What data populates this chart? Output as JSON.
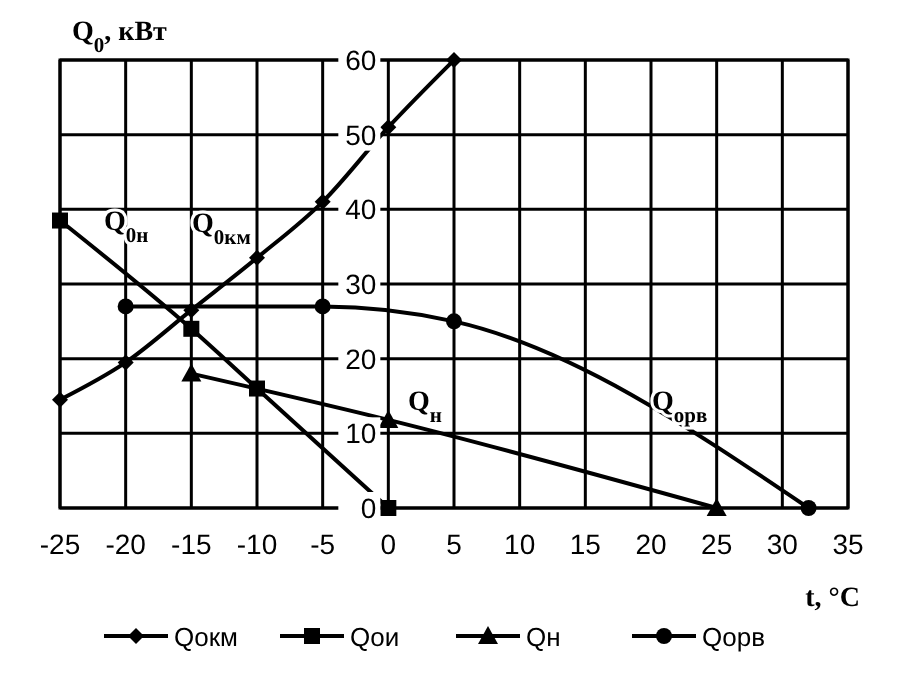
{
  "chart_data": {
    "type": "line",
    "ylabel": "Q$_{0}$, кВт",
    "xlabel": "t, °C",
    "xlim": [
      -25,
      35
    ],
    "xticks": [
      -25,
      -20,
      -15,
      -10,
      -5,
      0,
      5,
      10,
      15,
      20,
      25,
      30,
      35
    ],
    "ylim": [
      0,
      60
    ],
    "yticks": [
      0,
      10,
      20,
      30,
      40,
      50,
      60
    ],
    "grid": true,
    "legend": "bottom",
    "series": [
      {
        "name": "Qокм",
        "color": "#000000",
        "marker": "diamond",
        "x": [
          -25,
          -20,
          -15,
          -10,
          -5,
          0,
          5
        ],
        "values": [
          14.5,
          19.5,
          26.5,
          33.5,
          41,
          51,
          60
        ]
      },
      {
        "name": "Qои",
        "color": "#000000",
        "marker": "square",
        "x": [
          -25,
          -15,
          -10,
          0
        ],
        "values": [
          38.5,
          24,
          16,
          0
        ]
      },
      {
        "name": "Qн",
        "color": "#000000",
        "marker": "triangle",
        "x": [
          -15,
          0,
          25
        ],
        "values": [
          18,
          11.8,
          0
        ]
      },
      {
        "name": "Qорв",
        "color": "#000000",
        "marker": "circle",
        "x": [
          -20,
          -5,
          5,
          32
        ],
        "values": [
          27,
          27,
          25,
          0
        ]
      }
    ],
    "annotations": [
      "Q$_{0н}$",
      "Q$_{0км}$",
      "Q$_{н}$",
      "Q$_{орв}$"
    ]
  }
}
